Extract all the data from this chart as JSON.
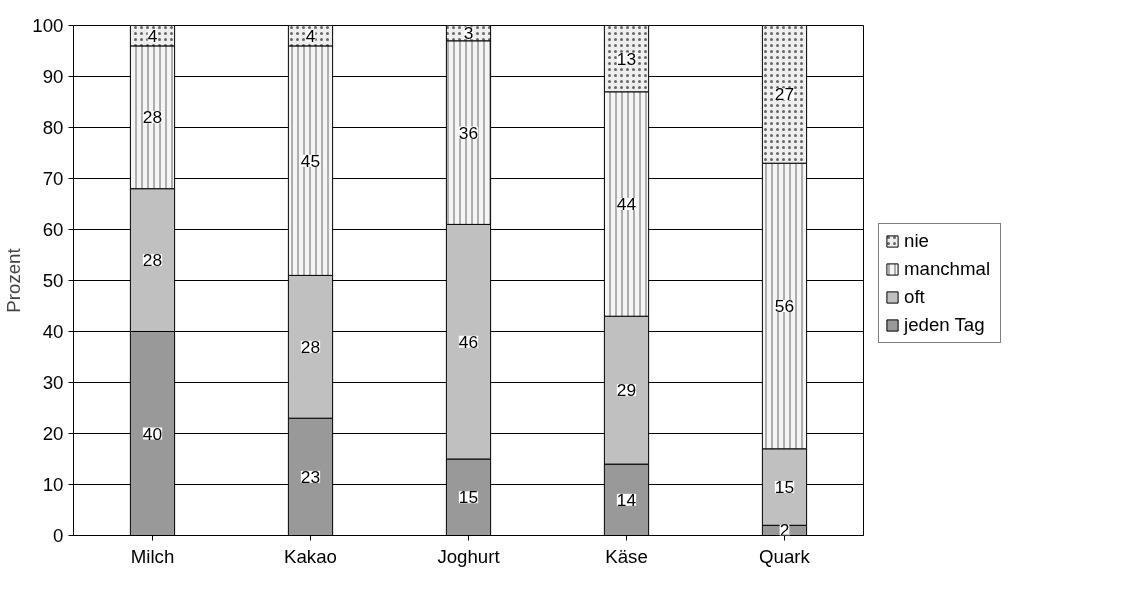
{
  "chart_data": {
    "type": "bar",
    "stacked": true,
    "ylabel": "Prozent",
    "categories": [
      "Milch",
      "Kakao",
      "Joghurt",
      "Käse",
      "Quark"
    ],
    "series": [
      {
        "name": "jeden Tag",
        "color": "#999999",
        "values": [
          40,
          23,
          15,
          14,
          2
        ]
      },
      {
        "name": "oft",
        "color": "#c0c0c0",
        "values": [
          28,
          28,
          46,
          29,
          15
        ]
      },
      {
        "name": "manchmal",
        "color": "#f5f5f5",
        "values": [
          28,
          45,
          36,
          44,
          56
        ]
      },
      {
        "name": "nie",
        "color": "#eeeeee",
        "values": [
          4,
          4,
          3,
          13,
          27
        ]
      }
    ],
    "ylim": [
      0,
      100
    ],
    "yticks": [
      0,
      10,
      20,
      30,
      40,
      50,
      60,
      70,
      80,
      90,
      100
    ],
    "grid": "y",
    "legend": "right",
    "data_labels": true
  }
}
